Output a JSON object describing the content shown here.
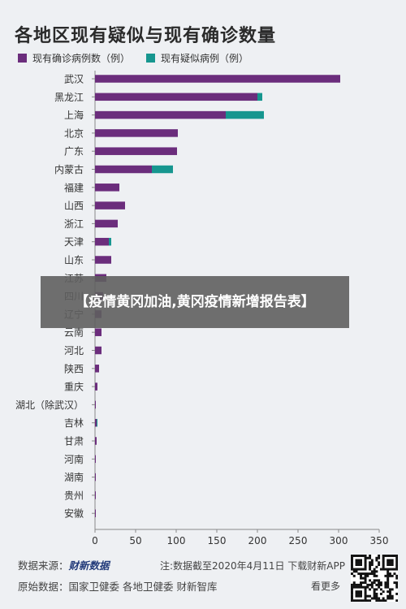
{
  "page": {
    "title": "各地区现有疑似与现有确诊数量",
    "banner": "【疫情黄冈加油,黄冈疫情新增报告表】"
  },
  "legend": {
    "confirmed_label": "现有确诊病例数（例）",
    "suspected_label": "现有疑似病例（例）"
  },
  "footer": {
    "source_label": "数据来源：",
    "source_brand": "财新数据",
    "note": "注:数据截至2020年4月11日 下载财新APP",
    "raw_label": "原始数据：",
    "raw_sources": "国家卫健委  各地卫健委  财新智库",
    "follow": "看更多"
  },
  "colors": {
    "confirmed": "#6b2d7c",
    "suspected": "#16968f",
    "background": "#eef0f3"
  },
  "chart_data": {
    "type": "bar",
    "orientation": "horizontal",
    "stacked": true,
    "title": "各地区现有疑似与现有确诊数量",
    "categories": [
      "武汉",
      "黑龙江",
      "上海",
      "北京",
      "广东",
      "内蒙古",
      "福建",
      "山西",
      "浙江",
      "天津",
      "山东",
      "江苏",
      "四川",
      "辽宁",
      "云南",
      "河北",
      "陕西",
      "重庆",
      "湖北（除武汉）",
      "吉林",
      "甘肃",
      "河南",
      "湖南",
      "贵州",
      "安徽"
    ],
    "series": [
      {
        "name": "现有确诊病例数（例）",
        "color": "#6b2d7c",
        "values": [
          302,
          200,
          161,
          102,
          101,
          70,
          30,
          37,
          28,
          17,
          20,
          14,
          10,
          8,
          8,
          8,
          5,
          3,
          1,
          2,
          2,
          1,
          1,
          1,
          1
        ]
      },
      {
        "name": "现有疑似病例（例）",
        "color": "#16968f",
        "values": [
          0,
          6,
          47,
          0,
          0,
          26,
          0,
          0,
          0,
          3,
          0,
          0,
          0,
          0,
          0,
          0,
          0,
          0,
          0,
          1,
          0,
          0,
          0,
          0,
          0
        ]
      }
    ],
    "xlim": [
      0,
      350
    ],
    "xticks": [
      0,
      50,
      100,
      150,
      200,
      250,
      300,
      350
    ],
    "grid": false,
    "legend_position": "top-left"
  }
}
